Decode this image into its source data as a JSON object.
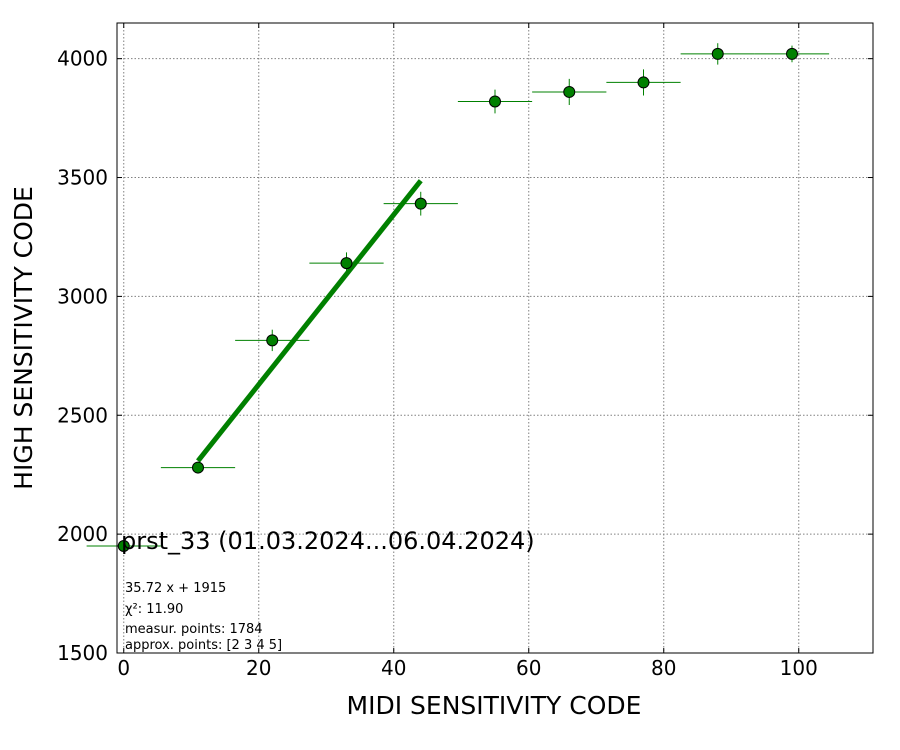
{
  "chart_data": {
    "type": "scatter",
    "title": "prst_33 (01.03.2024...06.04.2024)",
    "xlabel": "MIDI SENSITIVITY CODE",
    "ylabel": "HIGH SENSITIVITY CODE",
    "xlim": [
      -1,
      111
    ],
    "ylim": [
      1500,
      4150
    ],
    "xticks": [
      0,
      20,
      40,
      60,
      80,
      100
    ],
    "yticks": [
      1500,
      2000,
      2500,
      3000,
      3500,
      4000
    ],
    "xtick_labels": [
      "0",
      "20",
      "40",
      "60",
      "80",
      "100"
    ],
    "ytick_labels": [
      "1500",
      "2000",
      "2500",
      "3000",
      "3500",
      "4000"
    ],
    "grid": true,
    "color": "#008000",
    "points": [
      {
        "x": 0,
        "y": 1950,
        "xerr": 5.5,
        "yerr": 0
      },
      {
        "x": 11,
        "y": 2280,
        "xerr": 5.5,
        "yerr": 0
      },
      {
        "x": 22,
        "y": 2815,
        "xerr": 5.5,
        "yerr": 45
      },
      {
        "x": 33,
        "y": 3140,
        "xerr": 5.5,
        "yerr": 45
      },
      {
        "x": 44,
        "y": 3390,
        "xerr": 5.5,
        "yerr": 50
      },
      {
        "x": 55,
        "y": 3820,
        "xerr": 5.5,
        "yerr": 50
      },
      {
        "x": 66,
        "y": 3860,
        "xerr": 5.5,
        "yerr": 55
      },
      {
        "x": 77,
        "y": 3900,
        "xerr": 5.5,
        "yerr": 55
      },
      {
        "x": 88,
        "y": 4020,
        "xerr": 5.5,
        "yerr": 45
      },
      {
        "x": 99,
        "y": 4020,
        "xerr": 5.5,
        "yerr": 35
      }
    ],
    "fit": {
      "slope": 35.72,
      "intercept": 1915,
      "x_range": [
        11,
        44
      ]
    },
    "annotations": [
      "35.72 x + 1915",
      "χ²: 11.90",
      "measur. points: 1784",
      "approx. points: [2 3 4 5]"
    ]
  }
}
